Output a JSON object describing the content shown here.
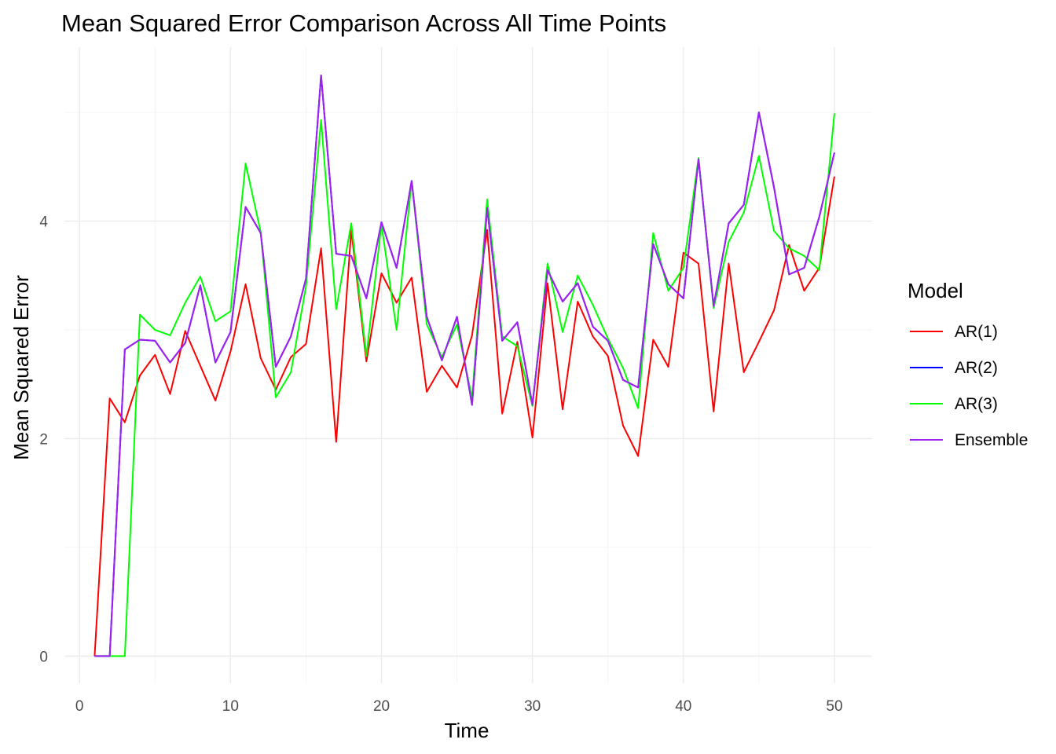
{
  "chart_data": {
    "type": "line",
    "title": "Mean Squared Error Comparison Across All Time Points",
    "xlabel": "Time",
    "ylabel": "Mean Squared Error",
    "xlim": [
      -1,
      52.5
    ],
    "ylim": [
      -0.25,
      5.6
    ],
    "x_ticks": [
      0,
      10,
      20,
      30,
      40,
      50
    ],
    "y_ticks": [
      0,
      2,
      4
    ],
    "grid": true,
    "legend": {
      "title": "Model",
      "placement": "right"
    },
    "x": [
      1,
      2,
      3,
      4,
      5,
      6,
      7,
      8,
      9,
      10,
      11,
      12,
      13,
      14,
      15,
      16,
      17,
      18,
      19,
      20,
      21,
      22,
      23,
      24,
      25,
      26,
      27,
      28,
      29,
      30,
      31,
      32,
      33,
      34,
      35,
      36,
      37,
      38,
      39,
      40,
      41,
      42,
      43,
      44,
      45,
      46,
      47,
      48,
      49,
      50
    ],
    "series": [
      {
        "name": "AR(1)",
        "color": "#ff0000",
        "values": [
          0,
          2.37,
          2.15,
          2.58,
          2.77,
          2.41,
          2.99,
          2.67,
          2.35,
          2.8,
          3.42,
          2.74,
          2.45,
          2.75,
          2.87,
          3.75,
          1.97,
          3.92,
          2.71,
          3.52,
          3.25,
          3.48,
          2.43,
          2.67,
          2.47,
          2.95,
          3.92,
          2.23,
          2.89,
          2.01,
          3.43,
          2.27,
          3.26,
          2.94,
          2.76,
          2.12,
          1.84,
          2.91,
          2.66,
          3.71,
          3.61,
          2.25,
          3.61,
          2.61,
          2.89,
          3.18,
          3.78,
          3.36,
          3.57,
          4.41
        ]
      },
      {
        "name": "AR(2)",
        "color": "#0000ff",
        "values": [
          0,
          0,
          2.82,
          2.91,
          2.9,
          2.7,
          2.88,
          3.41,
          2.7,
          2.98,
          4.13,
          3.89,
          2.66,
          2.94,
          3.47,
          5.34,
          3.7,
          3.68,
          3.29,
          3.99,
          3.57,
          4.37,
          3.12,
          2.72,
          3.12,
          2.31,
          4.12,
          2.9,
          3.07,
          2.31,
          3.55,
          3.26,
          3.43,
          3.03,
          2.9,
          2.54,
          2.47,
          3.79,
          3.42,
          3.29,
          4.57,
          3.22,
          3.98,
          4.15,
          5.0,
          4.31,
          3.51,
          3.57,
          4.04,
          4.63
        ]
      },
      {
        "name": "AR(3)",
        "color": "#00ff00",
        "values": [
          0,
          0,
          0,
          3.14,
          3.0,
          2.95,
          3.25,
          3.49,
          3.08,
          3.17,
          4.53,
          3.9,
          2.38,
          2.61,
          3.4,
          4.93,
          3.19,
          3.98,
          2.76,
          3.97,
          3.0,
          4.37,
          3.05,
          2.75,
          3.05,
          2.37,
          4.2,
          2.94,
          2.85,
          2.3,
          3.61,
          2.98,
          3.5,
          3.23,
          2.92,
          2.65,
          2.28,
          3.89,
          3.36,
          3.57,
          4.58,
          3.2,
          3.81,
          4.08,
          4.6,
          3.91,
          3.75,
          3.68,
          3.55,
          4.99
        ]
      },
      {
        "name": "Ensemble",
        "color": "#a020f0",
        "values": [
          0,
          0,
          2.82,
          2.91,
          2.9,
          2.7,
          2.88,
          3.41,
          2.7,
          2.98,
          4.13,
          3.89,
          2.66,
          2.94,
          3.47,
          5.34,
          3.7,
          3.68,
          3.29,
          3.99,
          3.57,
          4.37,
          3.12,
          2.72,
          3.12,
          2.31,
          4.12,
          2.9,
          3.07,
          2.31,
          3.55,
          3.26,
          3.43,
          3.03,
          2.9,
          2.54,
          2.47,
          3.79,
          3.42,
          3.29,
          4.57,
          3.22,
          3.98,
          4.15,
          5.0,
          4.31,
          3.51,
          3.57,
          4.04,
          4.63
        ]
      }
    ]
  }
}
